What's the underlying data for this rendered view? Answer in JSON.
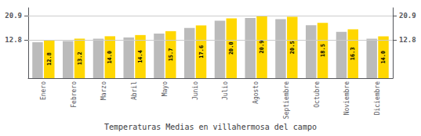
{
  "chart_data": {
    "type": "bar",
    "title": "Temperaturas Medias en villahermosa del campo",
    "categories": [
      "Enero",
      "Febrero",
      "Marzo",
      "Abril",
      "Mayo",
      "Junio",
      "Julio",
      "Agosto",
      "Septiembre",
      "Octubre",
      "Noviembre",
      "Diciembre"
    ],
    "series": [
      {
        "color": "#BBBBBB",
        "values": [
          12.0,
          12.4,
          13.2,
          13.6,
          14.9,
          16.8,
          19.2,
          20.1,
          19.7,
          17.7,
          15.5,
          13.2
        ]
      },
      {
        "color": "#FFD700",
        "values": [
          12.8,
          13.2,
          14.0,
          14.4,
          15.7,
          17.6,
          20.0,
          20.9,
          20.5,
          18.5,
          16.3,
          14.0
        ],
        "value_labels": [
          "12.8",
          "13.2",
          "14.0",
          "14.4",
          "15.7",
          "17.6",
          "20.0",
          "20.9",
          "20.5",
          "18.5",
          "16.3",
          "14.0"
        ],
        "data_labels": true
      }
    ],
    "ylim": [
      0,
      23.5
    ],
    "yticks": [
      12.8,
      20.9
    ],
    "y2lim": [
      0,
      23.5
    ],
    "y2ticks": [
      12.8,
      20.9
    ],
    "grid": true
  }
}
